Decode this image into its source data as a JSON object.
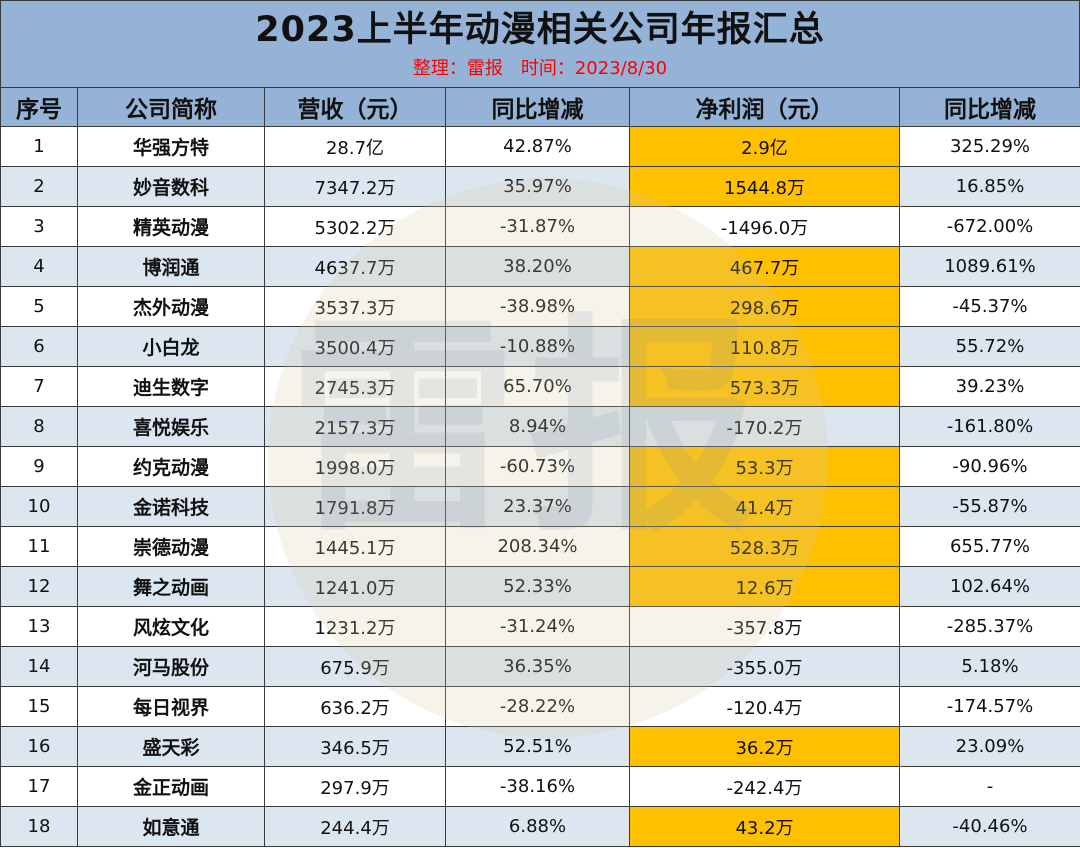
{
  "header": {
    "title": "2023上半年动漫相关公司年报汇总",
    "editor": "整理：雷报",
    "date": "时间：2023/8/30"
  },
  "watermark": {
    "text": "雷报"
  },
  "table": {
    "columns": [
      "序号",
      "公司简称",
      "营收（元）",
      "同比增减",
      "净利润（元）",
      "同比增减"
    ],
    "highlight_color": "#ffc000",
    "rows": [
      {
        "no": "1",
        "name": "华强方特",
        "revenue": "28.7亿",
        "rev_yoy": "42.87%",
        "profit": "2.9亿",
        "profit_yoy": "325.29%",
        "highlight": true
      },
      {
        "no": "2",
        "name": "妙音数科",
        "revenue": "7347.2万",
        "rev_yoy": "35.97%",
        "profit": "1544.8万",
        "profit_yoy": "16.85%",
        "highlight": true
      },
      {
        "no": "3",
        "name": "精英动漫",
        "revenue": "5302.2万",
        "rev_yoy": "-31.87%",
        "profit": "-1496.0万",
        "profit_yoy": "-672.00%",
        "highlight": false
      },
      {
        "no": "4",
        "name": "博润通",
        "revenue": "4637.7万",
        "rev_yoy": "38.20%",
        "profit": "467.7万",
        "profit_yoy": "1089.61%",
        "highlight": true
      },
      {
        "no": "5",
        "name": "杰外动漫",
        "revenue": "3537.3万",
        "rev_yoy": "-38.98%",
        "profit": "298.6万",
        "profit_yoy": "-45.37%",
        "highlight": true
      },
      {
        "no": "6",
        "name": "小白龙",
        "revenue": "3500.4万",
        "rev_yoy": "-10.88%",
        "profit": "110.8万",
        "profit_yoy": "55.72%",
        "highlight": true
      },
      {
        "no": "7",
        "name": "迪生数字",
        "revenue": "2745.3万",
        "rev_yoy": "65.70%",
        "profit": "573.3万",
        "profit_yoy": "39.23%",
        "highlight": true
      },
      {
        "no": "8",
        "name": "喜悦娱乐",
        "revenue": "2157.3万",
        "rev_yoy": "8.94%",
        "profit": "-170.2万",
        "profit_yoy": "-161.80%",
        "highlight": false
      },
      {
        "no": "9",
        "name": "约克动漫",
        "revenue": "1998.0万",
        "rev_yoy": "-60.73%",
        "profit": "53.3万",
        "profit_yoy": "-90.96%",
        "highlight": true
      },
      {
        "no": "10",
        "name": "金诺科技",
        "revenue": "1791.8万",
        "rev_yoy": "23.37%",
        "profit": "41.4万",
        "profit_yoy": "-55.87%",
        "highlight": true
      },
      {
        "no": "11",
        "name": "崇德动漫",
        "revenue": "1445.1万",
        "rev_yoy": "208.34%",
        "profit": "528.3万",
        "profit_yoy": "655.77%",
        "highlight": true
      },
      {
        "no": "12",
        "name": "舞之动画",
        "revenue": "1241.0万",
        "rev_yoy": "52.33%",
        "profit": "12.6万",
        "profit_yoy": "102.64%",
        "highlight": true
      },
      {
        "no": "13",
        "name": "风炫文化",
        "revenue": "1231.2万",
        "rev_yoy": "-31.24%",
        "profit": "-357.8万",
        "profit_yoy": "-285.37%",
        "highlight": false
      },
      {
        "no": "14",
        "name": "河马股份",
        "revenue": "675.9万",
        "rev_yoy": "36.35%",
        "profit": "-355.0万",
        "profit_yoy": "5.18%",
        "highlight": false
      },
      {
        "no": "15",
        "name": "每日视界",
        "revenue": "636.2万",
        "rev_yoy": "-28.22%",
        "profit": "-120.4万",
        "profit_yoy": "-174.57%",
        "highlight": false
      },
      {
        "no": "16",
        "name": "盛天彩",
        "revenue": "346.5万",
        "rev_yoy": "52.51%",
        "profit": "36.2万",
        "profit_yoy": "23.09%",
        "highlight": true
      },
      {
        "no": "17",
        "name": "金正动画",
        "revenue": "297.9万",
        "rev_yoy": "-38.16%",
        "profit": "-242.4万",
        "profit_yoy": "-",
        "highlight": false
      },
      {
        "no": "18",
        "name": "如意通",
        "revenue": "244.4万",
        "rev_yoy": "6.88%",
        "profit": "43.2万",
        "profit_yoy": "-40.46%",
        "highlight": true
      }
    ]
  }
}
